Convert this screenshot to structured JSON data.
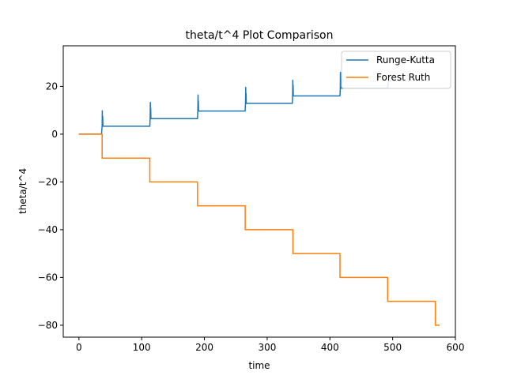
{
  "chart_data": {
    "type": "line",
    "title": "theta/t^4 Plot Comparison",
    "xlabel": "time",
    "ylabel": "theta/t^4",
    "xlim": [
      -25,
      600
    ],
    "ylim": [
      -85,
      37
    ],
    "xticks": [
      0,
      100,
      200,
      300,
      400,
      500,
      600
    ],
    "yticks": [
      -80,
      -60,
      -40,
      -20,
      0,
      20
    ],
    "xtick_labels": [
      "0",
      "100",
      "200",
      "300",
      "400",
      "500",
      "600"
    ],
    "ytick_labels": [
      "−80",
      "−60",
      "−40",
      "−20",
      "0",
      "20"
    ],
    "grid": false,
    "legend_position": "top-right",
    "series": [
      {
        "name": "Runge-Kutta",
        "color": "#1f77b4",
        "points": [
          [
            0,
            0
          ],
          [
            36,
            0
          ],
          [
            37,
            3.3
          ],
          [
            37.3,
            9.8
          ],
          [
            37.6,
            3.3
          ],
          [
            37.9,
            7.5
          ],
          [
            38.2,
            3.3
          ],
          [
            113,
            3.3
          ],
          [
            113.5,
            6.5
          ],
          [
            113.8,
            13.3
          ],
          [
            114.1,
            6.5
          ],
          [
            114.4,
            11
          ],
          [
            114.7,
            6.5
          ],
          [
            189,
            6.5
          ],
          [
            189.5,
            9.7
          ],
          [
            189.8,
            16.4
          ],
          [
            190.1,
            9.7
          ],
          [
            190.4,
            14
          ],
          [
            190.7,
            9.7
          ],
          [
            265,
            9.7
          ],
          [
            265.5,
            12.9
          ],
          [
            265.8,
            19.6
          ],
          [
            266.1,
            12.9
          ],
          [
            266.4,
            17
          ],
          [
            266.7,
            12.9
          ],
          [
            340,
            12.9
          ],
          [
            340.5,
            16
          ],
          [
            340.8,
            22.6
          ],
          [
            341.1,
            16
          ],
          [
            341.4,
            20.5
          ],
          [
            341.7,
            16
          ],
          [
            416,
            16
          ],
          [
            416.5,
            19.2
          ],
          [
            416.8,
            25.9
          ],
          [
            417.1,
            19.2
          ],
          [
            417.4,
            23
          ],
          [
            417.7,
            19.2
          ],
          [
            492,
            19.2
          ],
          [
            493,
            22
          ],
          [
            494,
            22.4
          ],
          [
            498,
            22.4
          ]
        ]
      },
      {
        "name": "Forest Ruth",
        "color": "#ff7f0e",
        "points": [
          [
            0,
            0
          ],
          [
            37,
            0
          ],
          [
            37,
            -10
          ],
          [
            113,
            -10
          ],
          [
            113,
            -20
          ],
          [
            189,
            -20
          ],
          [
            189,
            -30
          ],
          [
            265,
            -30
          ],
          [
            265,
            -40
          ],
          [
            341,
            -40
          ],
          [
            341,
            -50
          ],
          [
            416,
            -50
          ],
          [
            416,
            -60
          ],
          [
            492,
            -60
          ],
          [
            492,
            -70
          ],
          [
            568,
            -70
          ],
          [
            568,
            -80
          ],
          [
            575,
            -80
          ]
        ]
      }
    ]
  }
}
